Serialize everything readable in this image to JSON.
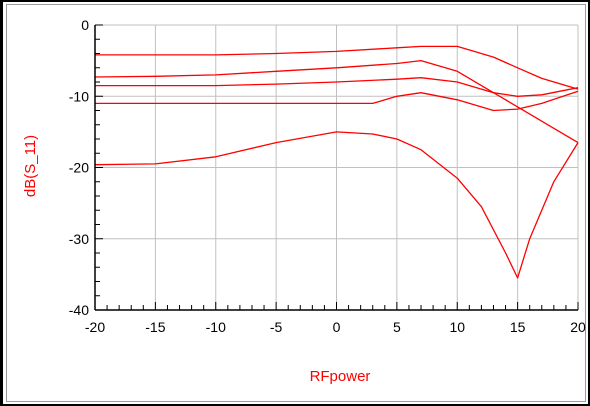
{
  "chart_data": {
    "type": "line",
    "title": "",
    "xlabel": "RFpower",
    "ylabel": "dB(S_11)",
    "xlim": [
      -20,
      20
    ],
    "ylim": [
      -40,
      0
    ],
    "x_ticks": [
      "-20",
      "-15",
      "-10",
      "-5",
      "0",
      "5",
      "10",
      "15",
      "20"
    ],
    "y_ticks": [
      "0",
      "-10",
      "-20",
      "-30",
      "-40"
    ],
    "grid": true,
    "colors": {
      "series": "#ff0000",
      "axis_label": "#ff0000",
      "grid": "#c0c0c0"
    },
    "series": [
      {
        "x": [
          -20,
          -15,
          -10,
          -5,
          0,
          5,
          7,
          10,
          13,
          15,
          17,
          20
        ],
        "y": [
          -4.2,
          -4.2,
          -4.2,
          -4.0,
          -3.7,
          -3.2,
          -3.0,
          -3.0,
          -4.5,
          -6.0,
          -7.5,
          -9.0
        ]
      },
      {
        "x": [
          -20,
          -15,
          -10,
          -5,
          0,
          5,
          7,
          10,
          12,
          14,
          16,
          18,
          20
        ],
        "y": [
          -7.3,
          -7.2,
          -7.0,
          -6.5,
          -6.0,
          -5.4,
          -5.0,
          -6.5,
          -8.5,
          -10.5,
          -12.5,
          -14.5,
          -16.5
        ]
      },
      {
        "x": [
          -20,
          -15,
          -10,
          -5,
          0,
          5,
          7,
          10,
          13,
          15,
          17,
          20
        ],
        "y": [
          -8.5,
          -8.5,
          -8.5,
          -8.3,
          -8.0,
          -7.6,
          -7.4,
          -8.0,
          -9.5,
          -10.0,
          -9.8,
          -8.8
        ]
      },
      {
        "x": [
          -20,
          -15,
          -10,
          -5,
          0,
          3,
          5,
          7,
          10,
          13,
          15,
          17,
          20
        ],
        "y": [
          -11.0,
          -11.0,
          -11.0,
          -11.0,
          -11.0,
          -11.0,
          -10.0,
          -9.5,
          -10.5,
          -12.0,
          -11.8,
          -11.0,
          -9.3
        ]
      },
      {
        "x": [
          -20,
          -15,
          -10,
          -5,
          0,
          3,
          5,
          7,
          10,
          12,
          14,
          15,
          16,
          18,
          20
        ],
        "y": [
          -19.6,
          -19.5,
          -18.5,
          -16.5,
          -15.0,
          -15.3,
          -16.0,
          -17.5,
          -21.5,
          -25.5,
          -32.0,
          -35.5,
          -30.0,
          -22.0,
          -16.5
        ]
      }
    ]
  }
}
